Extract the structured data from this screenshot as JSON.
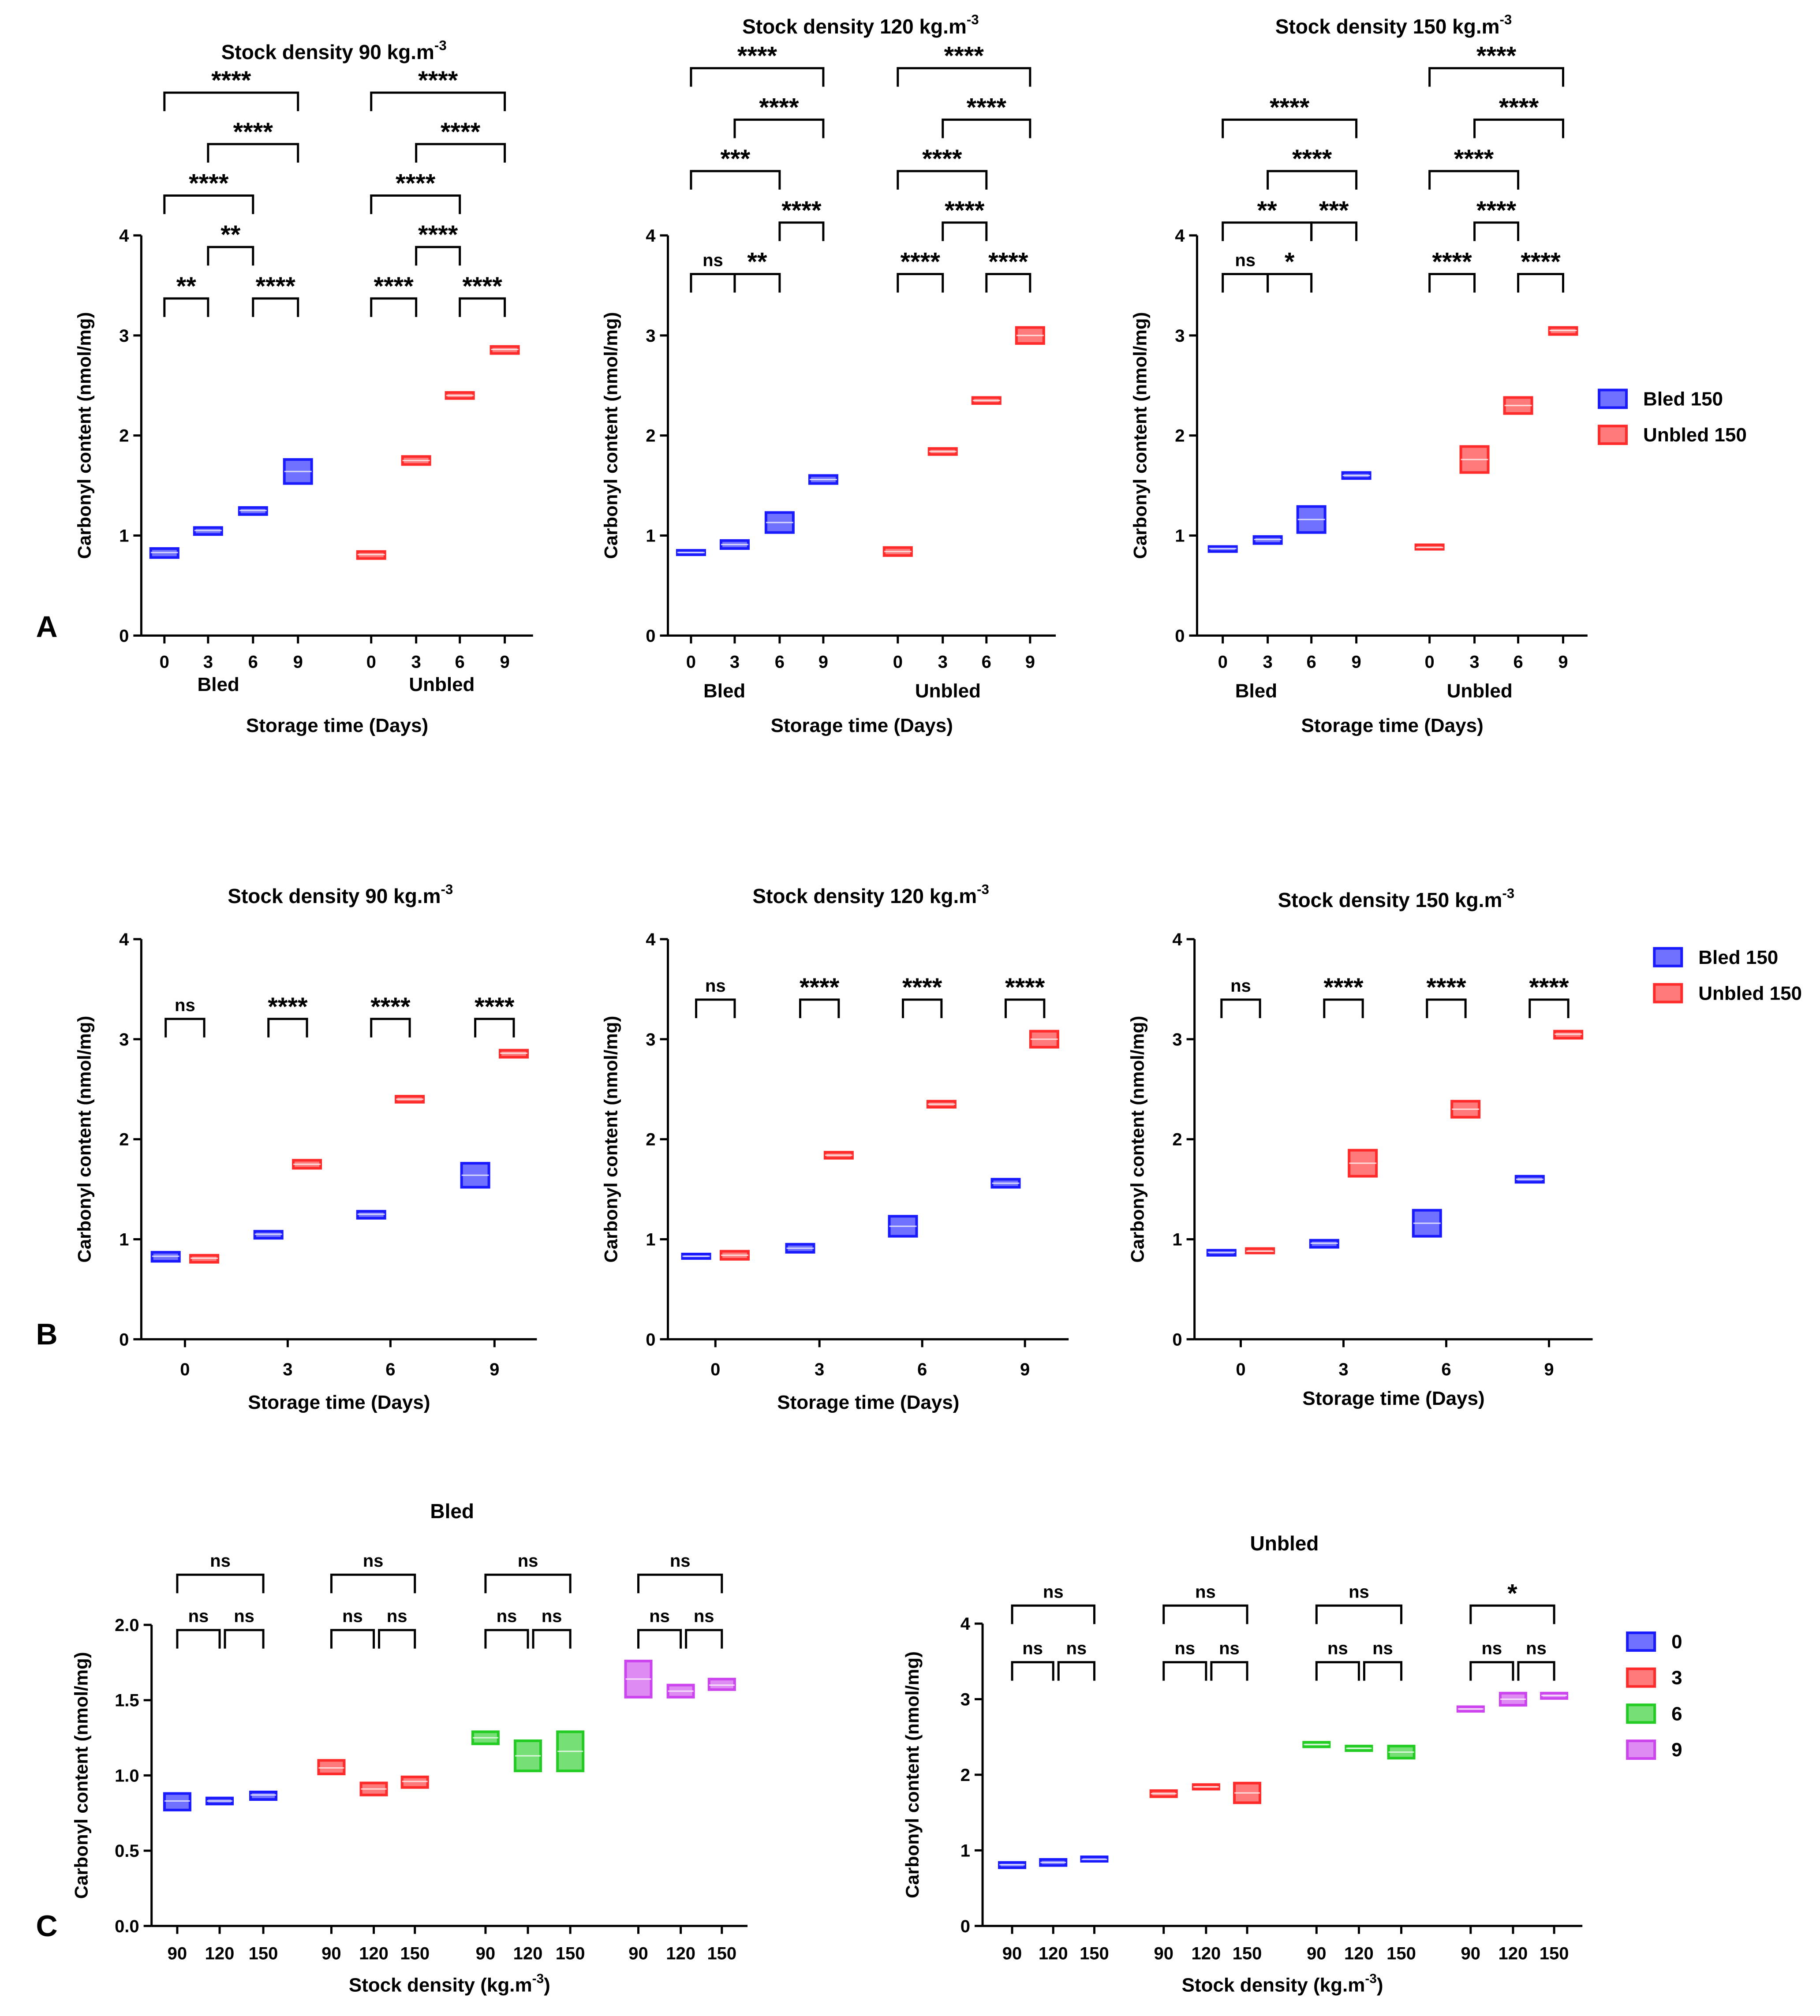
{
  "figure": {
    "panel_labels": [
      "A",
      "B",
      "C"
    ]
  },
  "colors": {
    "bled": "#1a1aff",
    "unbled": "#ff2a2a",
    "day0": "#1a1aff",
    "day3": "#ff2a2a",
    "day6": "#22cc22",
    "day9": "#cc44ee"
  },
  "chart_data": [
    {
      "id": "A1",
      "panel": "A",
      "type": "box",
      "title": "Stock density 90 kg.m",
      "title_sup": "-3",
      "ylabel": "Carbonyl content (nmol/mg)",
      "xlabel": "Storage time (Days)",
      "ylim": [
        0,
        4
      ],
      "yticks": [
        "0",
        "1",
        "2",
        "3",
        "4"
      ],
      "groups": [
        {
          "label": "Bled",
          "color_key": "bled",
          "ticks": [
            "0",
            "3",
            "6",
            "9"
          ],
          "boxes": [
            [
              0.78,
              0.83,
              0.87
            ],
            [
              1.01,
              1.05,
              1.08
            ],
            [
              1.21,
              1.25,
              1.28
            ],
            [
              1.52,
              1.64,
              1.76
            ]
          ]
        },
        {
          "label": "Unbled",
          "color_key": "unbled",
          "ticks": [
            "0",
            "3",
            "6",
            "9"
          ],
          "boxes": [
            [
              0.77,
              0.81,
              0.84
            ],
            [
              1.71,
              1.75,
              1.79
            ],
            [
              2.37,
              2.4,
              2.43
            ],
            [
              2.82,
              2.86,
              2.89
            ]
          ]
        }
      ],
      "comparisons": [
        {
          "g": 0,
          "a": 0,
          "b": 1,
          "level": 0,
          "label": "**"
        },
        {
          "g": 0,
          "a": 2,
          "b": 3,
          "level": 0,
          "label": "****"
        },
        {
          "g": 0,
          "a": 1,
          "b": 2,
          "level": 1,
          "label": "**"
        },
        {
          "g": 0,
          "a": 0,
          "b": 2,
          "level": 2,
          "label": "****"
        },
        {
          "g": 0,
          "a": 1,
          "b": 3,
          "level": 3,
          "label": "****"
        },
        {
          "g": 0,
          "a": 0,
          "b": 3,
          "level": 4,
          "label": "****"
        },
        {
          "g": 1,
          "a": 0,
          "b": 1,
          "level": 0,
          "label": "****"
        },
        {
          "g": 1,
          "a": 2,
          "b": 3,
          "level": 0,
          "label": "****"
        },
        {
          "g": 1,
          "a": 1,
          "b": 2,
          "level": 1,
          "label": "****"
        },
        {
          "g": 1,
          "a": 0,
          "b": 2,
          "level": 2,
          "label": "****"
        },
        {
          "g": 1,
          "a": 1,
          "b": 3,
          "level": 3,
          "label": "****"
        },
        {
          "g": 1,
          "a": 0,
          "b": 3,
          "level": 4,
          "label": "****"
        }
      ]
    },
    {
      "id": "A2",
      "panel": "A",
      "type": "box",
      "title": "Stock density 120 kg.m",
      "title_sup": "-3",
      "ylabel": "Carbonyl content (nmol/mg)",
      "xlabel": "Storage time (Days)",
      "ylim": [
        0,
        4
      ],
      "yticks": [
        "0",
        "1",
        "2",
        "3",
        "4"
      ],
      "groups": [
        {
          "label": "Bled",
          "color_key": "bled",
          "ticks": [
            "0",
            "3",
            "6",
            "9"
          ],
          "boxes": [
            [
              0.81,
              0.83,
              0.85
            ],
            [
              0.87,
              0.91,
              0.95
            ],
            [
              1.03,
              1.13,
              1.23
            ],
            [
              1.52,
              1.56,
              1.6
            ]
          ]
        },
        {
          "label": "Unbled",
          "color_key": "unbled",
          "ticks": [
            "0",
            "3",
            "6",
            "9"
          ],
          "boxes": [
            [
              0.8,
              0.84,
              0.88
            ],
            [
              1.81,
              1.84,
              1.87
            ],
            [
              2.32,
              2.35,
              2.38
            ],
            [
              2.92,
              3.0,
              3.08
            ]
          ]
        }
      ],
      "comparisons": [
        {
          "g": 0,
          "a": 0,
          "b": 1,
          "level": 0,
          "label": "ns"
        },
        {
          "g": 0,
          "a": 1,
          "b": 2,
          "level": 0,
          "label": "**"
        },
        {
          "g": 0,
          "a": 2,
          "b": 3,
          "level": 1,
          "label": "****"
        },
        {
          "g": 0,
          "a": 0,
          "b": 2,
          "level": 2,
          "label": "***"
        },
        {
          "g": 0,
          "a": 1,
          "b": 3,
          "level": 3,
          "label": "****"
        },
        {
          "g": 0,
          "a": 0,
          "b": 3,
          "level": 4,
          "label": "****"
        },
        {
          "g": 1,
          "a": 0,
          "b": 1,
          "level": 0,
          "label": "****"
        },
        {
          "g": 1,
          "a": 2,
          "b": 3,
          "level": 0,
          "label": "****"
        },
        {
          "g": 1,
          "a": 1,
          "b": 2,
          "level": 1,
          "label": "****"
        },
        {
          "g": 1,
          "a": 0,
          "b": 2,
          "level": 2,
          "label": "****"
        },
        {
          "g": 1,
          "a": 1,
          "b": 3,
          "level": 3,
          "label": "****"
        },
        {
          "g": 1,
          "a": 0,
          "b": 3,
          "level": 4,
          "label": "****"
        }
      ]
    },
    {
      "id": "A3",
      "panel": "A",
      "type": "box",
      "title": "Stock density 150 kg.m",
      "title_sup": "-3",
      "ylabel": "Carbonyl content (nmol/mg)",
      "xlabel": "Storage time (Days)",
      "ylim": [
        0,
        4
      ],
      "yticks": [
        "0",
        "1",
        "2",
        "3",
        "4"
      ],
      "groups": [
        {
          "label": "Bled",
          "color_key": "bled",
          "ticks": [
            "0",
            "3",
            "6",
            "9"
          ],
          "boxes": [
            [
              0.84,
              0.87,
              0.89
            ],
            [
              0.92,
              0.96,
              0.99
            ],
            [
              1.03,
              1.16,
              1.29
            ],
            [
              1.57,
              1.6,
              1.63
            ]
          ]
        },
        {
          "label": "Unbled",
          "color_key": "unbled",
          "ticks": [
            "0",
            "3",
            "6",
            "9"
          ],
          "boxes": [
            [
              0.87,
              0.88,
              0.9
            ],
            [
              1.63,
              1.76,
              1.89
            ],
            [
              2.22,
              2.3,
              2.38
            ],
            [
              3.01,
              3.05,
              3.08
            ]
          ]
        }
      ],
      "comparisons": [
        {
          "g": 0,
          "a": 0,
          "b": 1,
          "level": 0,
          "label": "ns"
        },
        {
          "g": 0,
          "a": 1,
          "b": 2,
          "level": 0,
          "label": "*"
        },
        {
          "g": 0,
          "a": 0,
          "b": 2,
          "level": 1,
          "label": "**"
        },
        {
          "g": 0,
          "a": 2,
          "b": 3,
          "level": 1,
          "label": "***"
        },
        {
          "g": 0,
          "a": 1,
          "b": 3,
          "level": 2,
          "label": "****"
        },
        {
          "g": 0,
          "a": 0,
          "b": 3,
          "level": 3,
          "label": "****"
        },
        {
          "g": 1,
          "a": 0,
          "b": 1,
          "level": 0,
          "label": "****"
        },
        {
          "g": 1,
          "a": 2,
          "b": 3,
          "level": 0,
          "label": "****"
        },
        {
          "g": 1,
          "a": 1,
          "b": 2,
          "level": 1,
          "label": "****"
        },
        {
          "g": 1,
          "a": 0,
          "b": 2,
          "level": 2,
          "label": "****"
        },
        {
          "g": 1,
          "a": 1,
          "b": 3,
          "level": 3,
          "label": "****"
        },
        {
          "g": 1,
          "a": 0,
          "b": 3,
          "level": 4,
          "label": "****"
        }
      ]
    },
    {
      "id": "B1",
      "panel": "B",
      "type": "box",
      "title": "Stock density 90 kg.m",
      "title_sup": "-3",
      "ylabel": "Carbonyl content (nmol/mg)",
      "xlabel": "Storage time (Days)",
      "ylim": [
        0,
        4
      ],
      "yticks": [
        "0",
        "1",
        "2",
        "3",
        "4"
      ],
      "categories": [
        "0",
        "3",
        "6",
        "9"
      ],
      "series": [
        {
          "name": "Bled 150",
          "color_key": "bled",
          "boxes": [
            [
              0.78,
              0.83,
              0.87
            ],
            [
              1.01,
              1.05,
              1.08
            ],
            [
              1.21,
              1.25,
              1.28
            ],
            [
              1.52,
              1.64,
              1.76
            ]
          ]
        },
        {
          "name": "Unbled 150",
          "color_key": "unbled",
          "boxes": [
            [
              0.77,
              0.81,
              0.84
            ],
            [
              1.71,
              1.75,
              1.79
            ],
            [
              2.37,
              2.4,
              2.43
            ],
            [
              2.82,
              2.86,
              2.89
            ]
          ]
        }
      ],
      "comparison_labels": [
        "ns",
        "****",
        "****",
        "****"
      ]
    },
    {
      "id": "B2",
      "panel": "B",
      "type": "box",
      "title": "Stock density 120 kg.m",
      "title_sup": "-3",
      "ylabel": "Carbonyl content (nmol/mg)",
      "xlabel": "Storage time (Days)",
      "ylim": [
        0,
        4
      ],
      "yticks": [
        "0",
        "1",
        "2",
        "3",
        "4"
      ],
      "categories": [
        "0",
        "3",
        "6",
        "9"
      ],
      "series": [
        {
          "name": "Bled 150",
          "color_key": "bled",
          "boxes": [
            [
              0.81,
              0.83,
              0.85
            ],
            [
              0.87,
              0.91,
              0.95
            ],
            [
              1.03,
              1.13,
              1.23
            ],
            [
              1.52,
              1.56,
              1.6
            ]
          ]
        },
        {
          "name": "Unbled 150",
          "color_key": "unbled",
          "boxes": [
            [
              0.8,
              0.84,
              0.88
            ],
            [
              1.81,
              1.84,
              1.87
            ],
            [
              2.32,
              2.35,
              2.38
            ],
            [
              2.92,
              3.0,
              3.08
            ]
          ]
        }
      ],
      "comparison_labels": [
        "ns",
        "****",
        "****",
        "****"
      ]
    },
    {
      "id": "B3",
      "panel": "B",
      "type": "box",
      "title": "Stock density 150 kg.m",
      "title_sup": "-3",
      "ylabel": "Carbonyl content (nmol/mg)",
      "xlabel": "Storage time (Days)",
      "ylim": [
        0,
        4
      ],
      "yticks": [
        "0",
        "1",
        "2",
        "3",
        "4"
      ],
      "categories": [
        "0",
        "3",
        "6",
        "9"
      ],
      "series": [
        {
          "name": "Bled 150",
          "color_key": "bled",
          "boxes": [
            [
              0.84,
              0.87,
              0.89
            ],
            [
              0.92,
              0.96,
              0.99
            ],
            [
              1.03,
              1.16,
              1.29
            ],
            [
              1.57,
              1.6,
              1.63
            ]
          ]
        },
        {
          "name": "Unbled 150",
          "color_key": "unbled",
          "boxes": [
            [
              0.87,
              0.88,
              0.9
            ],
            [
              1.63,
              1.76,
              1.89
            ],
            [
              2.22,
              2.3,
              2.38
            ],
            [
              3.01,
              3.05,
              3.08
            ]
          ]
        }
      ],
      "comparison_labels": [
        "ns",
        "****",
        "****",
        "****"
      ]
    },
    {
      "id": "C1",
      "panel": "C",
      "type": "box",
      "title": "Bled",
      "ylabel": "Carbonyl content (nmol/mg)",
      "xlabel": "Stock density (kg.m",
      "xlabel_sup": "-3",
      "xlabel_end": ")",
      "ylim": [
        0,
        2
      ],
      "yticks": [
        "0.0",
        "0.5",
        "1.0",
        "1.5",
        "2.0"
      ],
      "groups": [
        {
          "color_key": "day0",
          "ticks": [
            "90",
            "120",
            "150"
          ],
          "boxes": [
            [
              0.77,
              0.83,
              0.88
            ],
            [
              0.81,
              0.83,
              0.85
            ],
            [
              0.84,
              0.87,
              0.89
            ]
          ],
          "comparisons": [
            "ns",
            "ns",
            "ns"
          ]
        },
        {
          "color_key": "day3",
          "ticks": [
            "90",
            "120",
            "150"
          ],
          "boxes": [
            [
              1.01,
              1.05,
              1.1
            ],
            [
              0.87,
              0.91,
              0.95
            ],
            [
              0.92,
              0.96,
              0.99
            ]
          ],
          "comparisons": [
            "ns",
            "ns",
            "ns"
          ]
        },
        {
          "color_key": "day6",
          "ticks": [
            "90",
            "120",
            "150"
          ],
          "boxes": [
            [
              1.21,
              1.25,
              1.29
            ],
            [
              1.03,
              1.13,
              1.23
            ],
            [
              1.03,
              1.16,
              1.29
            ]
          ],
          "comparisons": [
            "ns",
            "ns",
            "ns"
          ]
        },
        {
          "color_key": "day9",
          "ticks": [
            "90",
            "120",
            "150"
          ],
          "boxes": [
            [
              1.52,
              1.64,
              1.76
            ],
            [
              1.52,
              1.56,
              1.6
            ],
            [
              1.57,
              1.6,
              1.64
            ]
          ],
          "comparisons": [
            "ns",
            "ns",
            "ns"
          ]
        }
      ]
    },
    {
      "id": "C2",
      "panel": "C",
      "type": "box",
      "title": "Unbled",
      "ylabel": "Carbonyl content (nmol/mg)",
      "xlabel": "Stock density (kg.m",
      "xlabel_sup": "-3",
      "xlabel_end": ")",
      "ylim": [
        0,
        4
      ],
      "yticks": [
        "0",
        "1",
        "2",
        "3",
        "4"
      ],
      "groups": [
        {
          "color_key": "day0",
          "ticks": [
            "90",
            "120",
            "150"
          ],
          "boxes": [
            [
              0.77,
              0.81,
              0.84
            ],
            [
              0.8,
              0.84,
              0.88
            ],
            [
              0.87,
              0.88,
              0.9
            ]
          ],
          "comparisons": [
            "ns",
            "ns",
            "ns"
          ]
        },
        {
          "color_key": "day3",
          "ticks": [
            "90",
            "120",
            "150"
          ],
          "boxes": [
            [
              1.71,
              1.75,
              1.79
            ],
            [
              1.81,
              1.84,
              1.87
            ],
            [
              1.63,
              1.76,
              1.89
            ]
          ],
          "comparisons": [
            "ns",
            "ns",
            "ns"
          ]
        },
        {
          "color_key": "day6",
          "ticks": [
            "90",
            "120",
            "150"
          ],
          "boxes": [
            [
              2.37,
              2.4,
              2.43
            ],
            [
              2.32,
              2.35,
              2.38
            ],
            [
              2.22,
              2.3,
              2.38
            ]
          ],
          "comparisons": [
            "ns",
            "ns",
            "ns"
          ]
        },
        {
          "color_key": "day9",
          "ticks": [
            "90",
            "120",
            "150"
          ],
          "boxes": [
            [
              2.84,
              2.87,
              2.9
            ],
            [
              2.92,
              3.0,
              3.08
            ],
            [
              3.01,
              3.05,
              3.08
            ]
          ],
          "comparisons": [
            "ns",
            "ns",
            "*"
          ]
        }
      ]
    }
  ],
  "legends": [
    {
      "id": "legend-a",
      "entries": [
        {
          "label": "Bled 150",
          "color_key": "bled"
        },
        {
          "label": "Unbled 150",
          "color_key": "unbled"
        }
      ]
    },
    {
      "id": "legend-b",
      "entries": [
        {
          "label": "Bled 150",
          "color_key": "bled"
        },
        {
          "label": "Unbled 150",
          "color_key": "unbled"
        }
      ]
    },
    {
      "id": "legend-c",
      "entries": [
        {
          "label": "0",
          "color_key": "day0"
        },
        {
          "label": "3",
          "color_key": "day3"
        },
        {
          "label": "6",
          "color_key": "day6"
        },
        {
          "label": "9",
          "color_key": "day9"
        }
      ]
    }
  ]
}
